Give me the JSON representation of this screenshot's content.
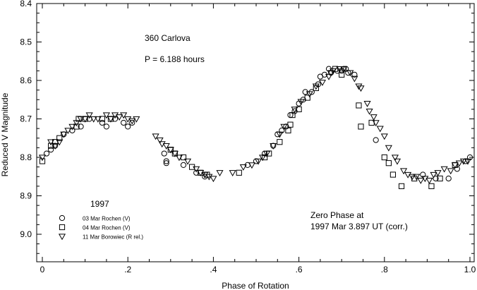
{
  "chart_data": {
    "type": "scatter",
    "title": "360 Carlova",
    "subtitle": "P = 6.188 hours",
    "xlabel": "Phase of Rotation",
    "ylabel": "Reduced V Magnitude",
    "xlim": [
      0,
      1.0
    ],
    "ylim": [
      8.4,
      9.05
    ],
    "y_inverted": true,
    "grid": false,
    "x_ticks": [
      {
        "value": 0.0,
        "label": "0"
      },
      {
        "value": 0.2,
        "label": ".2"
      },
      {
        "value": 0.4,
        "label": ".4"
      },
      {
        "value": 0.6,
        "label": ".6"
      },
      {
        "value": 0.8,
        "label": ".8"
      },
      {
        "value": 1.0,
        "label": "1.0"
      }
    ],
    "y_ticks": [
      {
        "value": 8.4,
        "label": "8.4"
      },
      {
        "value": 8.5,
        "label": "8.5"
      },
      {
        "value": 8.6,
        "label": "8.6"
      },
      {
        "value": 8.7,
        "label": "8.7"
      },
      {
        "value": 8.8,
        "label": "8.8"
      },
      {
        "value": 8.9,
        "label": "8.9"
      },
      {
        "value": 9.0,
        "label": "9.0"
      }
    ],
    "legend_title": "1997",
    "legend_position": "bottom-left",
    "annotation": [
      "Zero Phase at",
      "1997 Mar 3.897 UT (corr.)"
    ],
    "series": [
      {
        "name": "03 Mar Rochen (V)",
        "marker": "circle",
        "points": [
          [
            0.01,
            8.79
          ],
          [
            0.02,
            8.78
          ],
          [
            0.03,
            8.77
          ],
          [
            0.05,
            8.74
          ],
          [
            0.07,
            8.73
          ],
          [
            0.09,
            8.72
          ],
          [
            0.11,
            8.7
          ],
          [
            0.14,
            8.71
          ],
          [
            0.15,
            8.72
          ],
          [
            0.17,
            8.7
          ],
          [
            0.19,
            8.71
          ],
          [
            0.2,
            8.72
          ],
          [
            0.21,
            8.71
          ],
          [
            0.285,
            8.79
          ],
          [
            0.29,
            8.81
          ],
          [
            0.29,
            8.815
          ],
          [
            0.33,
            8.82
          ],
          [
            0.36,
            8.84
          ],
          [
            0.38,
            8.85
          ],
          [
            0.48,
            8.82
          ],
          [
            0.5,
            8.81
          ],
          [
            0.52,
            8.79
          ],
          [
            0.54,
            8.77
          ],
          [
            0.55,
            8.74
          ],
          [
            0.56,
            8.73
          ],
          [
            0.57,
            8.72
          ],
          [
            0.58,
            8.69
          ],
          [
            0.59,
            8.68
          ],
          [
            0.6,
            8.66
          ],
          [
            0.61,
            8.65
          ],
          [
            0.615,
            8.63
          ],
          [
            0.63,
            8.63
          ],
          [
            0.645,
            8.61
          ],
          [
            0.65,
            8.59
          ],
          [
            0.66,
            8.585
          ],
          [
            0.67,
            8.57
          ],
          [
            0.675,
            8.58
          ],
          [
            0.69,
            8.575
          ],
          [
            0.7,
            8.575
          ],
          [
            0.705,
            8.57
          ],
          [
            0.71,
            8.57
          ],
          [
            0.715,
            8.58
          ],
          [
            0.73,
            8.585
          ],
          [
            0.78,
            8.755
          ],
          [
            0.89,
            8.845
          ],
          [
            0.92,
            8.855
          ],
          [
            0.95,
            8.855
          ],
          [
            0.97,
            8.83
          ],
          [
            0.99,
            8.81
          ],
          [
            1.0,
            8.8
          ]
        ]
      },
      {
        "name": "04 Mar Rochen (V)",
        "marker": "square",
        "points": [
          [
            0.0,
            8.81
          ],
          [
            0.02,
            8.77
          ],
          [
            0.03,
            8.76
          ],
          [
            0.04,
            8.75
          ],
          [
            0.08,
            8.72
          ],
          [
            0.085,
            8.7
          ],
          [
            0.1,
            8.7
          ],
          [
            0.14,
            8.7
          ],
          [
            0.16,
            8.7
          ],
          [
            0.3,
            8.78
          ],
          [
            0.31,
            8.79
          ],
          [
            0.33,
            8.8
          ],
          [
            0.35,
            8.825
          ],
          [
            0.37,
            8.84
          ],
          [
            0.385,
            8.845
          ],
          [
            0.46,
            8.84
          ],
          [
            0.52,
            8.8
          ],
          [
            0.53,
            8.79
          ],
          [
            0.555,
            8.76
          ],
          [
            0.575,
            8.73
          ],
          [
            0.58,
            8.715
          ],
          [
            0.585,
            8.69
          ],
          [
            0.6,
            8.675
          ],
          [
            0.62,
            8.645
          ],
          [
            0.64,
            8.62
          ],
          [
            0.685,
            8.57
          ],
          [
            0.7,
            8.585
          ],
          [
            0.74,
            8.665
          ],
          [
            0.745,
            8.72
          ],
          [
            0.77,
            8.71
          ],
          [
            0.8,
            8.8
          ],
          [
            0.81,
            8.815
          ],
          [
            0.82,
            8.845
          ],
          [
            0.84,
            8.875
          ],
          [
            0.87,
            8.855
          ],
          [
            0.91,
            8.875
          ],
          [
            0.93,
            8.855
          ],
          [
            0.965,
            8.82
          ]
        ]
      },
      {
        "name": "11 Mar Borowiec (R rel.)",
        "marker": "triangle-down",
        "points": [
          [
            0.0,
            8.8
          ],
          [
            0.02,
            8.76
          ],
          [
            0.03,
            8.77
          ],
          [
            0.04,
            8.76
          ],
          [
            0.05,
            8.74
          ],
          [
            0.06,
            8.73
          ],
          [
            0.07,
            8.72
          ],
          [
            0.08,
            8.71
          ],
          [
            0.09,
            8.7
          ],
          [
            0.1,
            8.7
          ],
          [
            0.11,
            8.69
          ],
          [
            0.12,
            8.7
          ],
          [
            0.13,
            8.7
          ],
          [
            0.15,
            8.69
          ],
          [
            0.16,
            8.7
          ],
          [
            0.17,
            8.69
          ],
          [
            0.18,
            8.695
          ],
          [
            0.19,
            8.69
          ],
          [
            0.2,
            8.7
          ],
          [
            0.21,
            8.705
          ],
          [
            0.22,
            8.7
          ],
          [
            0.265,
            8.745
          ],
          [
            0.275,
            8.755
          ],
          [
            0.28,
            8.765
          ],
          [
            0.29,
            8.77
          ],
          [
            0.3,
            8.78
          ],
          [
            0.31,
            8.79
          ],
          [
            0.32,
            8.8
          ],
          [
            0.34,
            8.81
          ],
          [
            0.36,
            8.83
          ],
          [
            0.37,
            8.84
          ],
          [
            0.38,
            8.845
          ],
          [
            0.39,
            8.85
          ],
          [
            0.4,
            8.855
          ],
          [
            0.415,
            8.84
          ],
          [
            0.445,
            8.84
          ],
          [
            0.47,
            8.825
          ],
          [
            0.49,
            8.82
          ],
          [
            0.505,
            8.81
          ],
          [
            0.515,
            8.8
          ],
          [
            0.525,
            8.79
          ],
          [
            0.54,
            8.77
          ],
          [
            0.555,
            8.74
          ],
          [
            0.565,
            8.72
          ],
          [
            0.59,
            8.675
          ],
          [
            0.605,
            8.655
          ],
          [
            0.625,
            8.635
          ],
          [
            0.64,
            8.615
          ],
          [
            0.655,
            8.605
          ],
          [
            0.67,
            8.59
          ],
          [
            0.675,
            8.58
          ],
          [
            0.68,
            8.575
          ],
          [
            0.695,
            8.57
          ],
          [
            0.705,
            8.57
          ],
          [
            0.72,
            8.58
          ],
          [
            0.73,
            8.595
          ],
          [
            0.74,
            8.615
          ],
          [
            0.745,
            8.62
          ],
          [
            0.76,
            8.66
          ],
          [
            0.765,
            8.68
          ],
          [
            0.775,
            8.695
          ],
          [
            0.78,
            8.71
          ],
          [
            0.79,
            8.725
          ],
          [
            0.8,
            8.745
          ],
          [
            0.81,
            8.775
          ],
          [
            0.825,
            8.8
          ],
          [
            0.83,
            8.81
          ],
          [
            0.845,
            8.835
          ],
          [
            0.855,
            8.845
          ],
          [
            0.865,
            8.85
          ],
          [
            0.875,
            8.85
          ],
          [
            0.885,
            8.86
          ],
          [
            0.895,
            8.855
          ],
          [
            0.905,
            8.86
          ],
          [
            0.915,
            8.845
          ],
          [
            0.925,
            8.84
          ],
          [
            0.94,
            8.83
          ],
          [
            0.955,
            8.835
          ],
          [
            0.965,
            8.82
          ],
          [
            0.975,
            8.815
          ],
          [
            0.985,
            8.81
          ],
          [
            0.995,
            8.81
          ]
        ]
      }
    ]
  }
}
